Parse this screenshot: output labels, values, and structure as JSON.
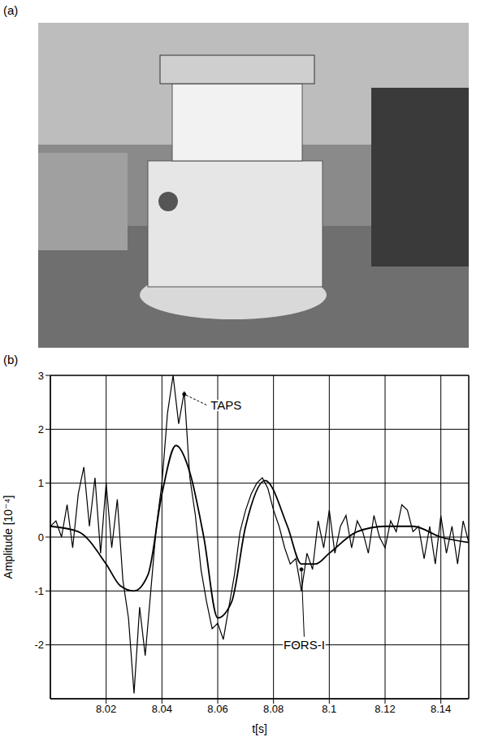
{
  "panels": [
    "(a)",
    "(b)"
  ],
  "chart_data": {
    "type": "line",
    "x_label": "t[s]",
    "y_label": "Amplitude [10⁻⁴]",
    "xlim": [
      8.0,
      8.15
    ],
    "xticks": [
      8.02,
      8.04,
      8.06,
      8.08,
      8.1,
      8.12,
      8.14
    ],
    "ylim": [
      -3,
      3
    ],
    "yticks": [
      -2,
      -1,
      0,
      1,
      2,
      3
    ],
    "grid": true,
    "series": [
      {
        "name": "TAPS",
        "color": "#000000",
        "line_style": "solid",
        "x": [
          8.0,
          8.002,
          8.004,
          8.006,
          8.008,
          8.01,
          8.012,
          8.014,
          8.016,
          8.018,
          8.02,
          8.022,
          8.024,
          8.026,
          8.028,
          8.03,
          8.032,
          8.034,
          8.036,
          8.038,
          8.04,
          8.042,
          8.044,
          8.046,
          8.048,
          8.05,
          8.052,
          8.054,
          8.056,
          8.058,
          8.06,
          8.062,
          8.064,
          8.066,
          8.068,
          8.07,
          8.072,
          8.074,
          8.076,
          8.078,
          8.08,
          8.082,
          8.084,
          8.086,
          8.088,
          8.09,
          8.092,
          8.094,
          8.096,
          8.098,
          8.1,
          8.102,
          8.104,
          8.106,
          8.108,
          8.11,
          8.112,
          8.114,
          8.116,
          8.118,
          8.12,
          8.122,
          8.124,
          8.126,
          8.128,
          8.13,
          8.132,
          8.134,
          8.136,
          8.138,
          8.14,
          8.142,
          8.144,
          8.146,
          8.148,
          8.15
        ],
        "values": [
          0.2,
          0.3,
          0.0,
          0.6,
          -0.2,
          0.8,
          1.3,
          0.2,
          1.1,
          -0.3,
          1.0,
          -0.2,
          0.7,
          -0.8,
          -1.5,
          -2.9,
          -1.3,
          -2.2,
          -1.0,
          0.2,
          1.0,
          2.3,
          3.0,
          2.1,
          2.7,
          1.1,
          0.4,
          -0.6,
          -1.2,
          -1.7,
          -1.6,
          -1.9,
          -1.3,
          -0.7,
          0.1,
          0.5,
          0.8,
          1.0,
          1.1,
          0.9,
          0.5,
          0.2,
          -0.2,
          -0.5,
          -0.4,
          -1.0,
          -0.3,
          -0.6,
          0.3,
          -0.2,
          0.5,
          -0.3,
          0.2,
          0.4,
          -0.2,
          0.3,
          0.1,
          -0.3,
          0.4,
          0.0,
          -0.2,
          0.3,
          0.1,
          0.6,
          0.5,
          0.1,
          0.2,
          -0.4,
          0.2,
          -0.5,
          0.4,
          -0.3,
          0.2,
          -0.5,
          0.3,
          -0.1
        ]
      },
      {
        "name": "FORS-I",
        "color": "#000000",
        "line_style": "solid",
        "x": [
          8.0,
          8.01,
          8.02,
          8.025,
          8.03,
          8.035,
          8.04,
          8.045,
          8.05,
          8.055,
          8.06,
          8.065,
          8.07,
          8.077,
          8.085,
          8.09,
          8.095,
          8.1,
          8.11,
          8.12,
          8.13,
          8.14,
          8.15
        ],
        "values": [
          0.2,
          0.1,
          -0.5,
          -0.9,
          -1.0,
          -0.7,
          0.8,
          1.7,
          1.2,
          0.0,
          -1.5,
          -1.2,
          0.2,
          1.05,
          0.2,
          -0.5,
          -0.5,
          -0.3,
          0.1,
          0.2,
          0.2,
          0.0,
          -0.1
        ]
      }
    ],
    "annotations": [
      {
        "text": "TAPS",
        "x": 8.056,
        "y": 2.45,
        "arrow_x": 8.048,
        "arrow_y": 2.65
      },
      {
        "text": "FORS-I",
        "x": 8.091,
        "y": -1.85,
        "arrow_x": 8.09,
        "arrow_y": -0.6
      }
    ]
  }
}
